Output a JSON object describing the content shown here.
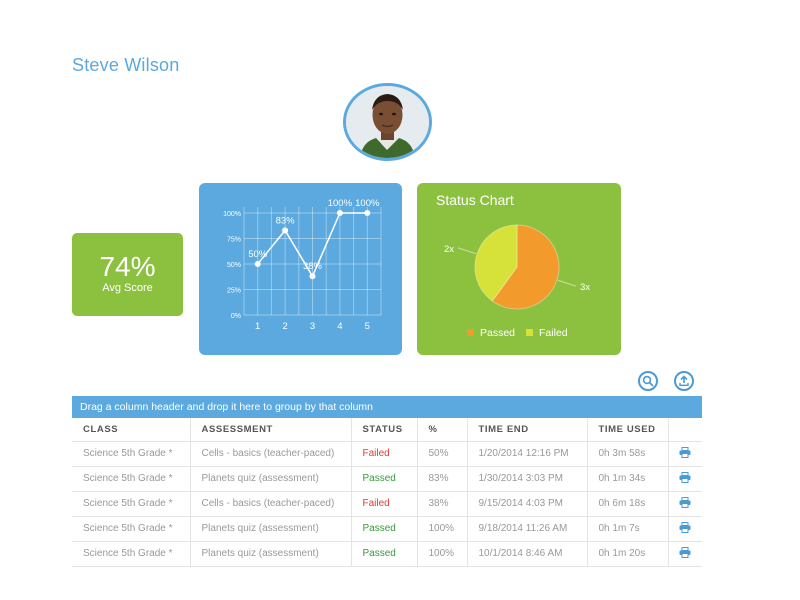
{
  "student": {
    "name": "Steve Wilson"
  },
  "avg_score": {
    "value": "74%",
    "label": "Avg Score"
  },
  "chart_data": [
    {
      "type": "line",
      "x": [
        1,
        2,
        3,
        4,
        5
      ],
      "values": [
        50,
        83,
        38,
        100,
        100
      ],
      "data_labels": [
        "50%",
        "83%",
        "38%",
        "100%",
        "100%"
      ],
      "y_tick_labels": [
        "0%",
        "25%",
        "50%",
        "75%",
        "100%"
      ],
      "ylim": [
        0,
        100
      ],
      "grid": "on",
      "colors": {
        "background": "#5ba9de",
        "line": "#ffffff"
      }
    },
    {
      "type": "pie",
      "title": "Status Chart",
      "labels": [
        "Passed",
        "Failed"
      ],
      "values": [
        3,
        2
      ],
      "slice_labels": [
        "3x",
        "2x"
      ],
      "legend_position": "bottom",
      "colors": {
        "Passed": "#f39a2c",
        "Failed": "#d6e13a",
        "background": "#8cc13f"
      }
    }
  ],
  "toolbar": {
    "search_icon": "search-icon",
    "export_icon": "upload-icon"
  },
  "grid": {
    "group_panel_text": "Drag a column header and drop it here to group by that column",
    "headers": [
      "CLASS",
      "ASSESSMENT",
      "STATUS",
      "%",
      "TIME END",
      "TIME USED",
      ""
    ],
    "rows": [
      [
        "Science 5th Grade *",
        "Cells - basics (teacher-paced)",
        "Failed",
        "50%",
        "1/20/2014 12:16 PM",
        "0h 3m 58s"
      ],
      [
        "Science 5th Grade *",
        "Planets quiz (assessment)",
        "Passed",
        "83%",
        "1/30/2014 3:03 PM",
        "0h 1m 34s"
      ],
      [
        "Science 5th Grade *",
        "Cells - basics (teacher-paced)",
        "Failed",
        "38%",
        "9/15/2014 4:03 PM",
        "0h 6m 18s"
      ],
      [
        "Science 5th Grade *",
        "Planets quiz (assessment)",
        "Passed",
        "100%",
        "9/18/2014 11:26 AM",
        "0h 1m 7s"
      ],
      [
        "Science 5th Grade *",
        "Planets quiz (assessment)",
        "Passed",
        "100%",
        "10/1/2014 8:46 AM",
        "0h 1m 20s"
      ]
    ],
    "row_action_icon": "printer-icon"
  },
  "colors": {
    "accent_blue": "#5ba9de",
    "accent_green": "#8cc13f",
    "failed": "#e53935",
    "passed": "#3a9a3a"
  }
}
